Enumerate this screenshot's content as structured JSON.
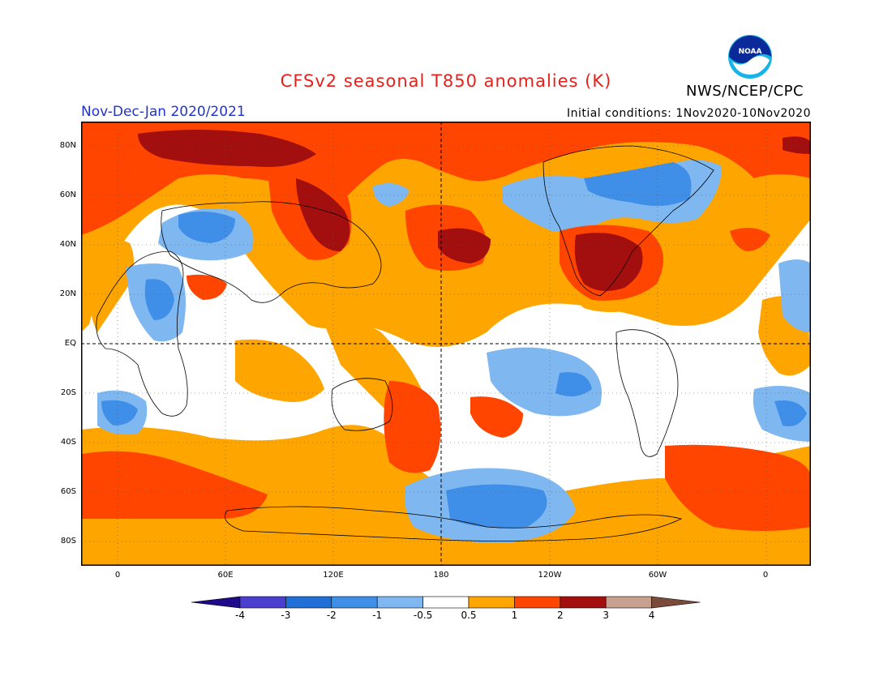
{
  "header": {
    "title": "CFSv2 seasonal T850 anomalies (K)",
    "period": "Nov-Dec-Jan 2020/2021",
    "initial_conditions": "Initial conditions: 1Nov2020-10Nov2020",
    "organization": "NWS/NCEP/CPC",
    "logo_text": "NOAA"
  },
  "map": {
    "lat_labels": [
      "80N",
      "60N",
      "40N",
      "20N",
      "EQ",
      "20S",
      "40S",
      "60S",
      "80S"
    ],
    "lon_labels": [
      "0",
      "60E",
      "120E",
      "180",
      "120W",
      "60W",
      "0"
    ],
    "colors": {
      "ocean_neutral": "#ffffff",
      "coast": "#000000"
    }
  },
  "legend": {
    "labels": [
      "-4",
      "-3",
      "-2",
      "-1",
      "-0.5",
      "0.5",
      "1",
      "2",
      "3",
      "4"
    ],
    "colors": [
      "#1e0a8a",
      "#4a3fcf",
      "#1f6fd6",
      "#3f8ee8",
      "#7fb8f0",
      "#ffffff",
      "#ffa500",
      "#ff4500",
      "#a30f0f",
      "#c8a090",
      "#7a4a3a"
    ]
  }
}
